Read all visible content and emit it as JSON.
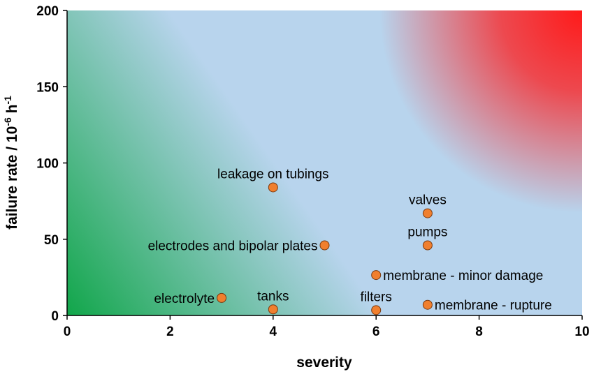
{
  "chart_data": {
    "type": "scatter",
    "title": "",
    "xlabel": "severity",
    "ylabel_main": "failure rate / 10",
    "ylabel_sup1": "-6",
    "ylabel_mid": " h",
    "ylabel_sup2": "-1",
    "xlim": [
      0,
      10
    ],
    "ylim": [
      0,
      200
    ],
    "xticks": [
      "0",
      "2",
      "4",
      "6",
      "8",
      "10"
    ],
    "yticks": [
      "0",
      "50",
      "100",
      "150",
      "200"
    ],
    "marker_color": "#f07f2e",
    "background": {
      "low_risk": "#11a64a",
      "medium": "#b8d4ed",
      "high_risk": "#ff1a1a"
    },
    "points": [
      {
        "label": "leakage on tubings",
        "x": 4,
        "y": 84,
        "anchor": "above"
      },
      {
        "label": "valves",
        "x": 7,
        "y": 67,
        "anchor": "above"
      },
      {
        "label": "pumps",
        "x": 7,
        "y": 46,
        "anchor": "above"
      },
      {
        "label": "electrodes and bipolar plates",
        "x": 5,
        "y": 46,
        "anchor": "left"
      },
      {
        "label": "membrane - minor damage",
        "x": 6,
        "y": 26.5,
        "anchor": "right"
      },
      {
        "label": "electrolyte",
        "x": 3,
        "y": 11.5,
        "anchor": "left"
      },
      {
        "label": "tanks",
        "x": 4,
        "y": 4,
        "anchor": "above"
      },
      {
        "label": "filters",
        "x": 6,
        "y": 3.5,
        "anchor": "above"
      },
      {
        "label": "membrane - rupture",
        "x": 7,
        "y": 7,
        "anchor": "right"
      }
    ]
  }
}
